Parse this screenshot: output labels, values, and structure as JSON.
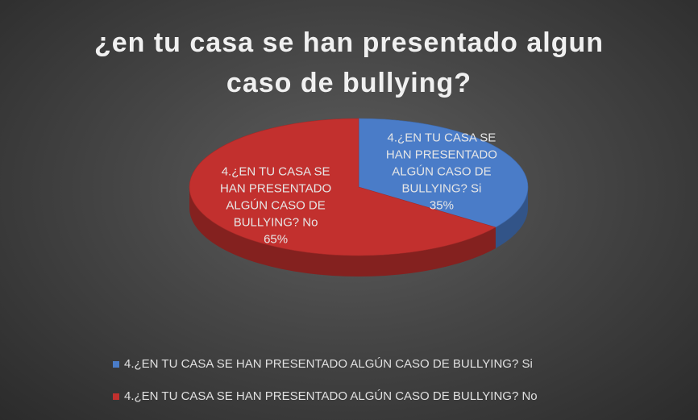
{
  "chart_data": {
    "type": "pie",
    "title": "¿en tu casa se han presentado algun caso de bullying?",
    "categories": [
      "4.¿EN TU CASA SE HAN PRESENTADO ALGÚN CASO DE BULLYING? Si",
      "4.¿EN TU CASA SE HAN PRESENTADO ALGÚN CASO DE BULLYING? No"
    ],
    "values": [
      35,
      65
    ],
    "value_labels": [
      "35%",
      "65%"
    ],
    "colors": [
      "#4a7cc8",
      "#c2302e"
    ],
    "legend": "bottom"
  }
}
